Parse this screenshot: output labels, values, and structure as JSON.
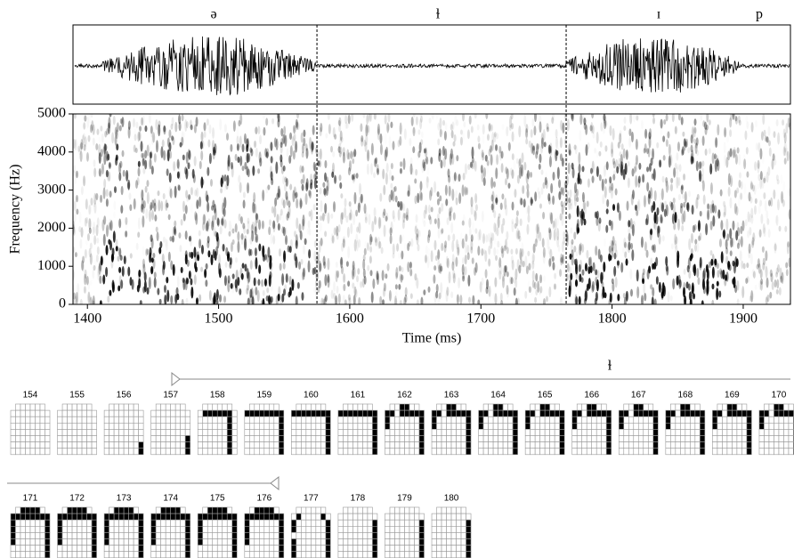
{
  "chart_data": {
    "type": "spectrogram",
    "x_label": "Time (ms)",
    "y_label": "Frequency (Hz)",
    "xlim": [
      1389,
      1936
    ],
    "ylim": [
      0,
      5000
    ],
    "xticks": [
      1400,
      1500,
      1600,
      1700,
      1800,
      1900
    ],
    "yticks": [
      0,
      1000,
      2000,
      3000,
      4000,
      5000
    ],
    "segments": [
      "ə",
      "ɫ",
      "ɪ",
      "p"
    ],
    "boundaries": [
      1575,
      1765
    ]
  },
  "epg": {
    "segment_label": "ɫ",
    "frames": [
      154,
      155,
      156,
      157,
      158,
      159,
      160,
      161,
      162,
      163,
      164,
      165,
      166,
      167,
      168,
      169,
      170,
      171,
      172,
      173,
      174,
      175,
      176,
      177,
      178,
      179,
      180
    ]
  }
}
